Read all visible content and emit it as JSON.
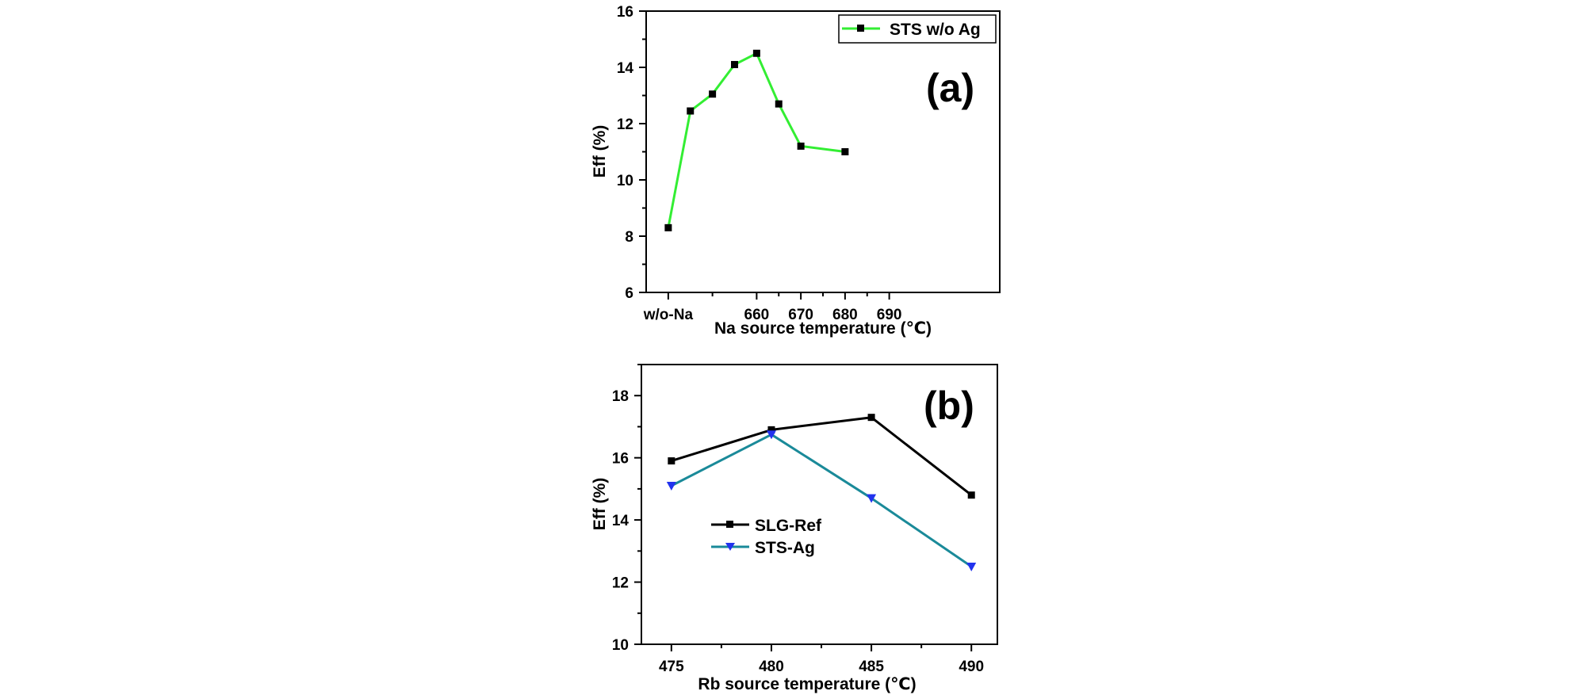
{
  "chart_data": [
    {
      "type": "line",
      "panel_label": "(a)",
      "xlabel": "Na source temperature (℃)",
      "ylabel": "Eff (%)",
      "ylim": [
        6,
        16
      ],
      "xlim": [
        0.5,
        8.5
      ],
      "yticks": [
        6,
        8,
        10,
        12,
        14,
        16
      ],
      "xticks": [
        {
          "x": 1,
          "label": "w/o-Na"
        },
        {
          "x": 3,
          "label": "660"
        },
        {
          "x": 4,
          "label": "670"
        },
        {
          "x": 5,
          "label": "680"
        },
        {
          "x": 6,
          "label": "690"
        }
      ],
      "legend_position": "top-right",
      "series": [
        {
          "name": "STS w/o Ag",
          "color": "#33ee33",
          "marker": "square",
          "x": [
            1,
            1.5,
            2,
            2.5,
            3,
            3.5,
            4,
            5
          ],
          "y": [
            8.3,
            12.45,
            13.05,
            14.1,
            14.5,
            12.7,
            11.2,
            11.0
          ]
        }
      ],
      "grid": false
    },
    {
      "type": "line",
      "panel_label": "(b)",
      "xlabel": "Rb source temperature (℃)",
      "ylabel": "Eff (%)",
      "ylim": [
        10,
        19
      ],
      "xlim": [
        473.5,
        491.3
      ],
      "yticks": [
        10,
        12,
        14,
        16,
        18
      ],
      "xticks": [
        {
          "x": 475,
          "label": "475"
        },
        {
          "x": 480,
          "label": "480"
        },
        {
          "x": 485,
          "label": "485"
        },
        {
          "x": 490,
          "label": "490"
        }
      ],
      "legend_position": "center-left",
      "series": [
        {
          "name": "SLG-Ref",
          "color": "#000000",
          "marker": "square",
          "x": [
            475,
            480,
            485,
            490
          ],
          "y": [
            15.9,
            16.9,
            17.3,
            14.8
          ]
        },
        {
          "name": "STS-Ag",
          "color": "#1a8a99",
          "marker_color": "#2233ee",
          "marker": "triangle-down",
          "x": [
            475,
            480,
            485,
            490
          ],
          "y": [
            15.1,
            16.75,
            14.7,
            12.5
          ]
        }
      ],
      "grid": false
    }
  ]
}
